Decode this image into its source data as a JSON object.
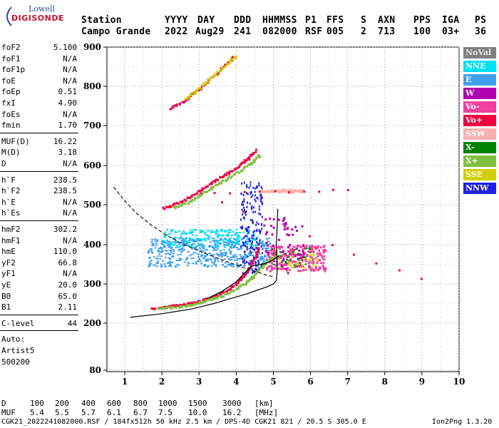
{
  "logo": {
    "line1": "Lowell",
    "line2": "DIGISONDE"
  },
  "header": {
    "labels": [
      "Station",
      "YYYY",
      "DAY",
      "DDD",
      "HHMMSS",
      "P1",
      "FFS",
      "S",
      "AXN",
      "PPS",
      "IGA",
      "PS"
    ],
    "values": [
      "Campo Grande",
      "2022",
      "Aug29",
      "241",
      "082000",
      "RSF",
      "005",
      "2",
      "713",
      "100",
      "03+",
      "36"
    ]
  },
  "params_group1": [
    {
      "name": "foF2",
      "value": "5.100"
    },
    {
      "name": "foF1",
      "value": "N/A"
    },
    {
      "name": "foF1p",
      "value": "N/A"
    },
    {
      "name": "foE",
      "value": "N/A"
    },
    {
      "name": "foEp",
      "value": "0.51"
    },
    {
      "name": "fxI",
      "value": "4.90"
    },
    {
      "name": "foEs",
      "value": "N/A"
    },
    {
      "name": "fmin",
      "value": "1.70"
    }
  ],
  "params_group2": [
    {
      "name": "MUF(D)",
      "value": "16.22"
    },
    {
      "name": "M(D)",
      "value": "3.18"
    },
    {
      "name": "D",
      "value": "N/A"
    }
  ],
  "params_group3": [
    {
      "name": "h`F",
      "value": "238.5"
    },
    {
      "name": "h`F2",
      "value": "238.5"
    },
    {
      "name": "h`E",
      "value": "N/A"
    },
    {
      "name": "h`Es",
      "value": "N/A"
    }
  ],
  "params_group4": [
    {
      "name": "hmF2",
      "value": "302.2"
    },
    {
      "name": "hmF1",
      "value": "N/A"
    },
    {
      "name": "hmE",
      "value": "110.0"
    },
    {
      "name": "yF2",
      "value": "66.8"
    },
    {
      "name": "yF1",
      "value": "N/A"
    },
    {
      "name": "yE",
      "value": "20.0"
    },
    {
      "name": "B0",
      "value": "65.0"
    },
    {
      "name": "B1",
      "value": "2.11"
    }
  ],
  "clevel": {
    "name": "C-level",
    "value": "44"
  },
  "auto": {
    "line1": "Auto:",
    "line2": "Artist5",
    "line3": "500200"
  },
  "legend": [
    {
      "label": "NoVal",
      "color": "#808080"
    },
    {
      "label": "NNE",
      "color": "#00e0f0"
    },
    {
      "label": "E",
      "color": "#40a0f0"
    },
    {
      "label": "W",
      "color": "#b000b0"
    },
    {
      "label": "Vo-",
      "color": "#f040a0"
    },
    {
      "label": "Vo+",
      "color": "#f00040"
    },
    {
      "label": "SSW",
      "color": "#f8b0b0"
    },
    {
      "label": "X-",
      "color": "#008000"
    },
    {
      "label": "X+",
      "color": "#80c040"
    },
    {
      "label": "SSE",
      "color": "#d0d000"
    },
    {
      "label": "NNW",
      "color": "#2020e0"
    }
  ],
  "chart_data": {
    "type": "scatter",
    "title": "",
    "xlabel": "",
    "ylabel": "",
    "xlim": [
      0.7,
      10
    ],
    "ylim": [
      80,
      900
    ],
    "x_ticks": [
      1,
      2,
      3,
      4,
      5,
      6,
      7,
      8,
      9,
      10
    ],
    "y_ticks": [
      80,
      200,
      300,
      400,
      500,
      600,
      700,
      800,
      900
    ],
    "grid": true,
    "series": [
      {
        "color": "#f00040",
        "trace": "F2 O-trace",
        "points": [
          [
            1.7,
            240
          ],
          [
            2.0,
            242
          ],
          [
            2.3,
            246
          ],
          [
            2.6,
            250
          ],
          [
            2.9,
            256
          ],
          [
            3.2,
            264
          ],
          [
            3.5,
            275
          ],
          [
            3.8,
            290
          ],
          [
            4.0,
            305
          ],
          [
            4.2,
            325
          ],
          [
            4.35,
            345
          ],
          [
            4.5,
            370
          ],
          [
            4.6,
            395
          ]
        ]
      },
      {
        "color": "#80c040",
        "trace": "F2 X-trace",
        "points": [
          [
            1.9,
            240
          ],
          [
            2.3,
            243
          ],
          [
            2.7,
            248
          ],
          [
            3.0,
            254
          ],
          [
            3.3,
            262
          ],
          [
            3.6,
            272
          ],
          [
            3.9,
            286
          ],
          [
            4.2,
            302
          ],
          [
            4.4,
            318
          ],
          [
            4.6,
            338
          ],
          [
            4.8,
            355
          ],
          [
            5.0,
            370
          ]
        ]
      },
      {
        "color": "#f00040",
        "trace": "second hop",
        "points": [
          [
            2.0,
            493
          ],
          [
            2.3,
            502
          ],
          [
            2.6,
            515
          ],
          [
            2.9,
            532
          ],
          [
            3.2,
            550
          ],
          [
            3.5,
            568
          ],
          [
            3.8,
            585
          ],
          [
            4.1,
            605
          ],
          [
            4.3,
            620
          ],
          [
            4.5,
            640
          ]
        ]
      },
      {
        "color": "#80c040",
        "trace": "second hop X",
        "points": [
          [
            2.3,
            495
          ],
          [
            2.6,
            505
          ],
          [
            2.9,
            520
          ],
          [
            3.2,
            538
          ],
          [
            3.5,
            555
          ],
          [
            3.8,
            572
          ],
          [
            4.1,
            590
          ],
          [
            4.4,
            610
          ],
          [
            4.6,
            628
          ]
        ]
      },
      {
        "color": "#f00040",
        "trace": "third hop",
        "points": [
          [
            2.2,
            745
          ],
          [
            2.5,
            760
          ],
          [
            2.8,
            782
          ],
          [
            3.1,
            805
          ],
          [
            3.4,
            830
          ],
          [
            3.7,
            858
          ],
          [
            3.9,
            875
          ]
        ]
      },
      {
        "color": "#d0d000",
        "trace": "third hop X",
        "points": [
          [
            2.6,
            770
          ],
          [
            2.9,
            790
          ],
          [
            3.2,
            815
          ],
          [
            3.5,
            840
          ],
          [
            3.8,
            865
          ],
          [
            4.0,
            880
          ]
        ]
      },
      {
        "color": "#f8b0b0",
        "trace": "SSW spread",
        "points": [
          [
            4.6,
            537
          ],
          [
            4.8,
            537
          ],
          [
            5.0,
            537
          ],
          [
            5.2,
            537
          ],
          [
            5.4,
            537
          ],
          [
            5.6,
            537
          ],
          [
            5.8,
            537
          ],
          [
            5.2,
            540
          ],
          [
            5.5,
            534
          ]
        ]
      },
      {
        "color": "#f00040",
        "trace": "isolated",
        "points": [
          [
            8.95,
            314
          ],
          [
            3.0,
            530
          ],
          [
            7.0,
            540
          ]
        ]
      }
    ],
    "spread_region": {
      "color": "#40a0f0",
      "x": [
        1.6,
        4.9
      ],
      "y": [
        345,
        420
      ]
    },
    "spread_region_nne": {
      "color": "#00e0f0",
      "x": [
        2.0,
        4.5
      ],
      "y": [
        395,
        440
      ]
    },
    "vertical_spread": {
      "color": "#2020e0",
      "x": [
        4.1,
        4.7
      ],
      "y": [
        330,
        560
      ]
    },
    "oblique_cluster": {
      "color": "#f040a0",
      "x": [
        4.8,
        6.4
      ],
      "y": [
        335,
        400
      ]
    },
    "profile_curve": [
      [
        1.15,
        215
      ],
      [
        2.0,
        224
      ],
      [
        2.8,
        236
      ],
      [
        3.4,
        250
      ],
      [
        3.9,
        264
      ],
      [
        4.3,
        275
      ],
      [
        4.6,
        285
      ],
      [
        4.85,
        293
      ],
      [
        5.0,
        300
      ],
      [
        5.08,
        308
      ],
      [
        5.1,
        330
      ],
      [
        5.1,
        360
      ],
      [
        5.08,
        400
      ],
      [
        5.1,
        440
      ],
      [
        5.12,
        490
      ]
    ],
    "dashed_curve": [
      [
        0.7,
        545
      ],
      [
        1.0,
        510
      ],
      [
        1.3,
        480
      ],
      [
        1.7,
        450
      ],
      [
        2.1,
        425
      ],
      [
        2.6,
        400
      ],
      [
        3.1,
        380
      ],
      [
        3.6,
        362
      ],
      [
        4.0,
        348
      ],
      [
        4.4,
        335
      ],
      [
        4.8,
        323
      ],
      [
        5.0,
        318
      ]
    ],
    "black_trace": [
      [
        3.2,
        262
      ],
      [
        3.6,
        280
      ],
      [
        4.0,
        305
      ],
      [
        4.2,
        325
      ],
      [
        4.4,
        345
      ],
      [
        4.8,
        352
      ],
      [
        5.0,
        362
      ],
      [
        5.15,
        372
      ]
    ]
  },
  "footer": {
    "line1_label": "D",
    "line1_values": [
      "100",
      "200",
      "400",
      "600",
      "800",
      "1000",
      "1500",
      "3000",
      "[km]"
    ],
    "line2_label": "MUF",
    "line2_values": [
      "5.4",
      "5.5",
      "5.7",
      "6.1",
      "6.7",
      "7.5",
      "10.0",
      "16.2",
      "[MHz]"
    ],
    "line3": "CGK21_2022241082000.RSF / 184fx512h 50 kHz 2.5 km / DPS-4D CGK21 821 / 20.5 S 305.0 E",
    "line3_right": "Ion2Png 1.3.20"
  }
}
